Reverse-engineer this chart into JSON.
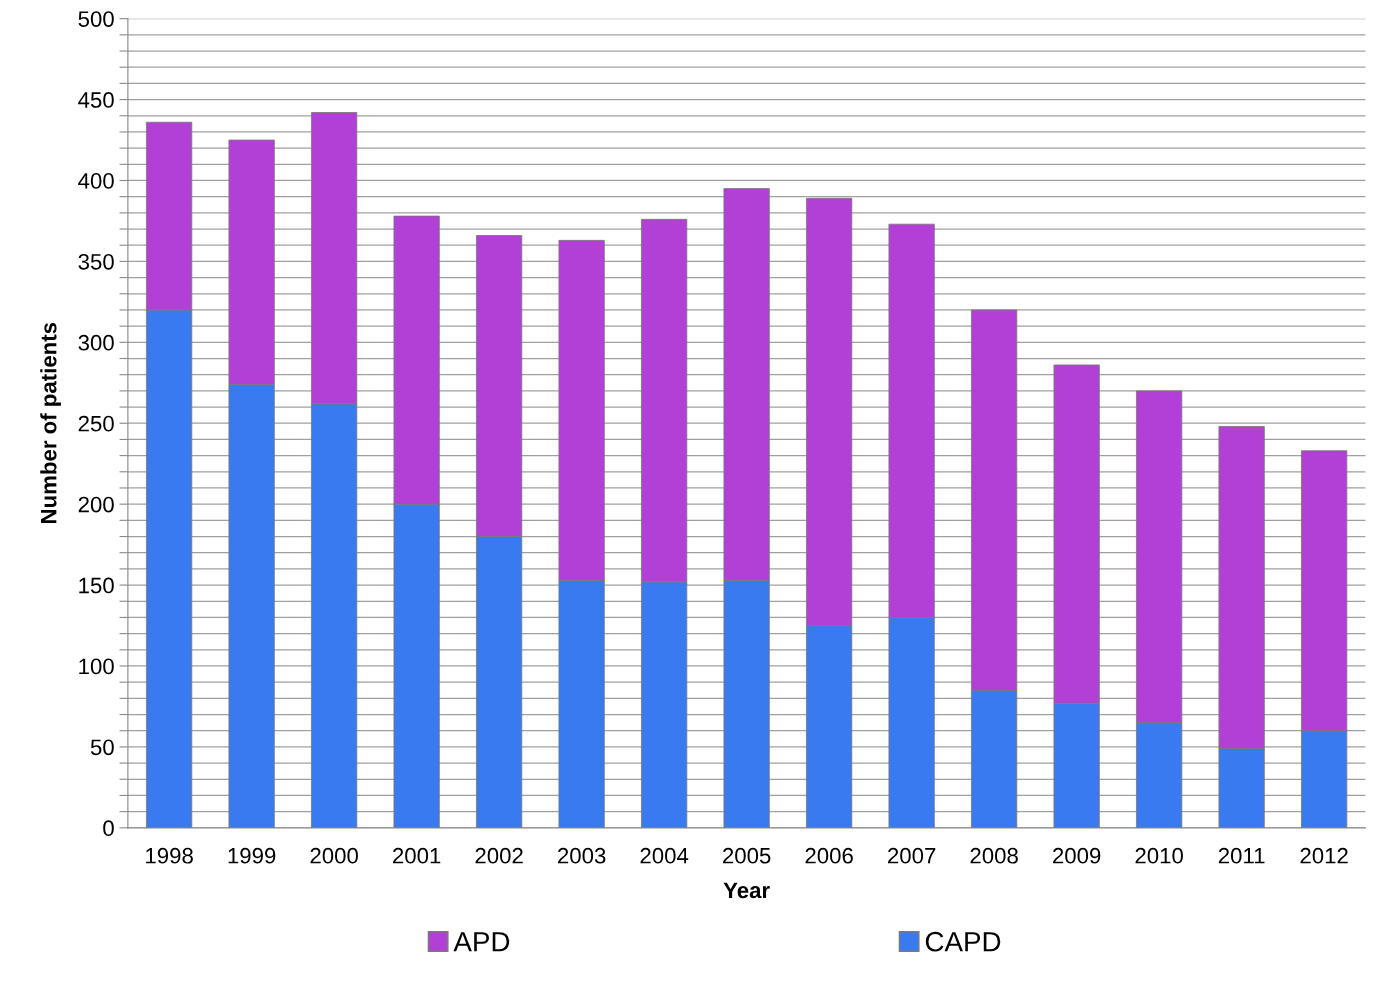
{
  "chart_data": {
    "type": "bar",
    "stacked": true,
    "xlabel": "Year",
    "ylabel": "Number of patients",
    "categories": [
      "1998",
      "1999",
      "2000",
      "2001",
      "2002",
      "2003",
      "2004",
      "2005",
      "2006",
      "2007",
      "2008",
      "2009",
      "2010",
      "2011",
      "2012"
    ],
    "series": [
      {
        "name": "CAPD",
        "color": "#3a7af0",
        "values": [
          320,
          274,
          262,
          200,
          180,
          153,
          152,
          153,
          125,
          130,
          85,
          77,
          65,
          49,
          60
        ]
      },
      {
        "name": "APD",
        "color": "#b23fd6",
        "values": [
          116,
          151,
          180,
          178,
          186,
          210,
          224,
          242,
          264,
          243,
          235,
          209,
          205,
          199,
          173
        ]
      }
    ],
    "ylim": [
      0,
      500
    ],
    "yticks": [
      0,
      {
        "value": 10,
        "label": null
      },
      {
        "value": 20,
        "label": null
      },
      {
        "value": 30,
        "label": null
      },
      {
        "value": 40,
        "label": null
      },
      50,
      {
        "value": 60,
        "label": null
      },
      {
        "value": 70,
        "label": null
      },
      {
        "value": 80,
        "label": null
      },
      {
        "value": 90,
        "label": null
      },
      100,
      {
        "value": 110,
        "label": null
      },
      {
        "value": 120,
        "label": null
      },
      {
        "value": 130,
        "label": null
      },
      {
        "value": 140,
        "label": null
      },
      150,
      {
        "value": 160,
        "label": null
      },
      {
        "value": 170,
        "label": null
      },
      {
        "value": 180,
        "label": null
      },
      {
        "value": 190,
        "label": null
      },
      200,
      {
        "value": 210,
        "label": null
      },
      {
        "value": 220,
        "label": null
      },
      {
        "value": 230,
        "label": null
      },
      {
        "value": 240,
        "label": null
      },
      250,
      {
        "value": 260,
        "label": null
      },
      {
        "value": 270,
        "label": null
      },
      {
        "value": 280,
        "label": null
      },
      {
        "value": 290,
        "label": null
      },
      300,
      {
        "value": 310,
        "label": null
      },
      {
        "value": 320,
        "label": null
      },
      {
        "value": 330,
        "label": null
      },
      {
        "value": 340,
        "label": null
      },
      350,
      {
        "value": 360,
        "label": null
      },
      {
        "value": 370,
        "label": null
      },
      {
        "value": 380,
        "label": null
      },
      {
        "value": 390,
        "label": null
      },
      400,
      {
        "value": 410,
        "label": null
      },
      {
        "value": 420,
        "label": null
      },
      {
        "value": 430,
        "label": null
      },
      {
        "value": 440,
        "label": null
      },
      450,
      {
        "value": 460,
        "label": null
      },
      {
        "value": 470,
        "label": null
      },
      {
        "value": 480,
        "label": null
      },
      {
        "value": 490,
        "label": null
      },
      500
    ],
    "grid": "y",
    "legend": "bottom"
  }
}
